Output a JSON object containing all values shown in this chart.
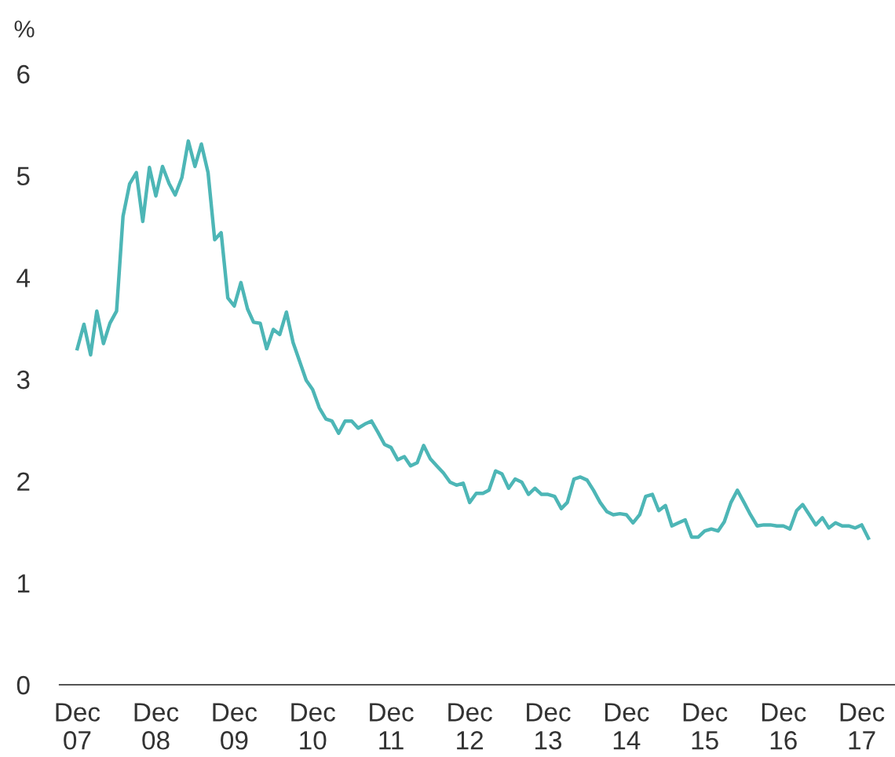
{
  "chart_data": {
    "type": "line",
    "ylabel": "%",
    "xlim": [
      "2007-09-10",
      "2018-05-05"
    ],
    "ylim": [
      0,
      6
    ],
    "yticks": [
      0,
      1,
      2,
      3,
      4,
      5,
      6
    ],
    "xticks": [
      {
        "value": "2007-12",
        "label": "Dec\n07"
      },
      {
        "value": "2008-12",
        "label": "Dec\n08"
      },
      {
        "value": "2009-12",
        "label": "Dec\n09"
      },
      {
        "value": "2010-12",
        "label": "Dec\n10"
      },
      {
        "value": "2011-12",
        "label": "Dec\n11"
      },
      {
        "value": "2012-12",
        "label": "Dec\n12"
      },
      {
        "value": "2013-12",
        "label": "Dec\n13"
      },
      {
        "value": "2014-12",
        "label": "Dec\n14"
      },
      {
        "value": "2015-12",
        "label": "Dec\n15"
      },
      {
        "value": "2016-12",
        "label": "Dec\n16"
      },
      {
        "value": "2017-12",
        "label": "Dec\n17"
      }
    ],
    "grid": false,
    "legend": false,
    "marker": "none",
    "line_style": "solid",
    "x": [
      "2007-12",
      "2008-01",
      "2008-02",
      "2008-03",
      "2008-04",
      "2008-05",
      "2008-06",
      "2008-07",
      "2008-08",
      "2008-09",
      "2008-10",
      "2008-11",
      "2008-12",
      "2009-01",
      "2009-02",
      "2009-03",
      "2009-04",
      "2009-05",
      "2009-06",
      "2009-07",
      "2009-08",
      "2009-09",
      "2009-10",
      "2009-11",
      "2009-12",
      "2010-01",
      "2010-02",
      "2010-03",
      "2010-04",
      "2010-05",
      "2010-06",
      "2010-07",
      "2010-08",
      "2010-09",
      "2010-10",
      "2010-11",
      "2010-12",
      "2011-01",
      "2011-02",
      "2011-03",
      "2011-04",
      "2011-05",
      "2011-06",
      "2011-07",
      "2011-08",
      "2011-09",
      "2011-10",
      "2011-11",
      "2011-12",
      "2012-01",
      "2012-02",
      "2012-03",
      "2012-04",
      "2012-05",
      "2012-06",
      "2012-07",
      "2012-08",
      "2012-09",
      "2012-10",
      "2012-11",
      "2012-12",
      "2013-01",
      "2013-02",
      "2013-03",
      "2013-04",
      "2013-05",
      "2013-06",
      "2013-07",
      "2013-08",
      "2013-09",
      "2013-10",
      "2013-11",
      "2013-12",
      "2014-01",
      "2014-02",
      "2014-03",
      "2014-04",
      "2014-05",
      "2014-06",
      "2014-07",
      "2014-08",
      "2014-09",
      "2014-10",
      "2014-11",
      "2014-12",
      "2015-01",
      "2015-02",
      "2015-03",
      "2015-04",
      "2015-05",
      "2015-06",
      "2015-07",
      "2015-08",
      "2015-09",
      "2015-10",
      "2015-11",
      "2015-12",
      "2016-01",
      "2016-02",
      "2016-03",
      "2016-04",
      "2016-05",
      "2016-06",
      "2016-07",
      "2016-08",
      "2016-09",
      "2016-10",
      "2016-11",
      "2016-12",
      "2017-01",
      "2017-02",
      "2017-03",
      "2017-04",
      "2017-05",
      "2017-06",
      "2017-07",
      "2017-08",
      "2017-09",
      "2017-10",
      "2017-11",
      "2017-12",
      "2018-01"
    ],
    "series": [
      {
        "color": "#4db6b6",
        "values": [
          3.3,
          3.54,
          3.24,
          3.67,
          3.35,
          3.55,
          3.67,
          4.6,
          4.92,
          5.03,
          4.55,
          5.08,
          4.8,
          5.09,
          4.92,
          4.81,
          4.98,
          5.34,
          5.09,
          5.31,
          5.03,
          4.37,
          4.44,
          3.8,
          3.72,
          3.95,
          3.69,
          3.56,
          3.55,
          3.3,
          3.49,
          3.44,
          3.66,
          3.36,
          3.18,
          2.99,
          2.9,
          2.72,
          2.61,
          2.59,
          2.47,
          2.59,
          2.59,
          2.52,
          2.56,
          2.59,
          2.48,
          2.36,
          2.33,
          2.21,
          2.24,
          2.15,
          2.18,
          2.35,
          2.22,
          2.15,
          2.08,
          1.99,
          1.96,
          1.98,
          1.79,
          1.88,
          1.88,
          1.91,
          2.1,
          2.07,
          1.93,
          2.02,
          1.99,
          1.87,
          1.93,
          1.87,
          1.87,
          1.85,
          1.73,
          1.79,
          2.02,
          2.04,
          2.01,
          1.91,
          1.79,
          1.7,
          1.67,
          1.68,
          1.67,
          1.59,
          1.67,
          1.85,
          1.87,
          1.71,
          1.76,
          1.56,
          1.59,
          1.62,
          1.45,
          1.45,
          1.51,
          1.53,
          1.51,
          1.6,
          1.79,
          1.91,
          1.79,
          1.67,
          1.56,
          1.57,
          1.57,
          1.56,
          1.56,
          1.53,
          1.71,
          1.77,
          1.67,
          1.57,
          1.64,
          1.54,
          1.59,
          1.56,
          1.56,
          1.54,
          1.57,
          1.44
        ]
      }
    ]
  }
}
